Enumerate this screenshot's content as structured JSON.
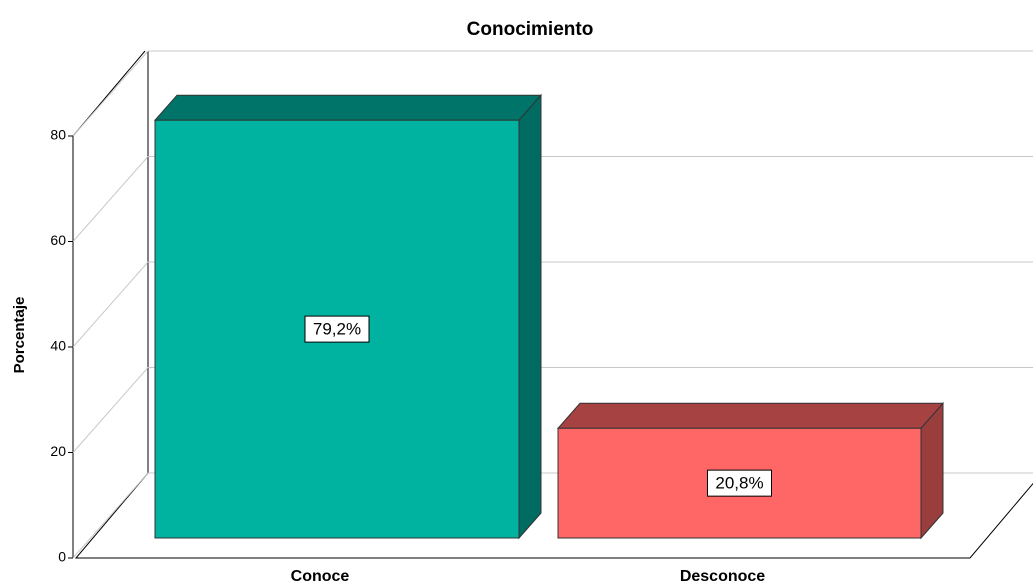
{
  "chart_data": {
    "type": "bar3d",
    "title": "Conocimiento",
    "ylabel": "Porcentaje",
    "categories": [
      "Conoce",
      "Desconoce"
    ],
    "series": [
      {
        "name": "Porcentaje",
        "values": [
          79.2,
          20.8
        ],
        "value_labels": [
          "79,2%",
          "20,8%"
        ],
        "colors": [
          "#00b2a0",
          "#ff6666"
        ]
      }
    ],
    "ylim": [
      0,
      80
    ],
    "yticks": [
      0,
      20,
      40,
      60,
      80
    ],
    "grid": true
  }
}
